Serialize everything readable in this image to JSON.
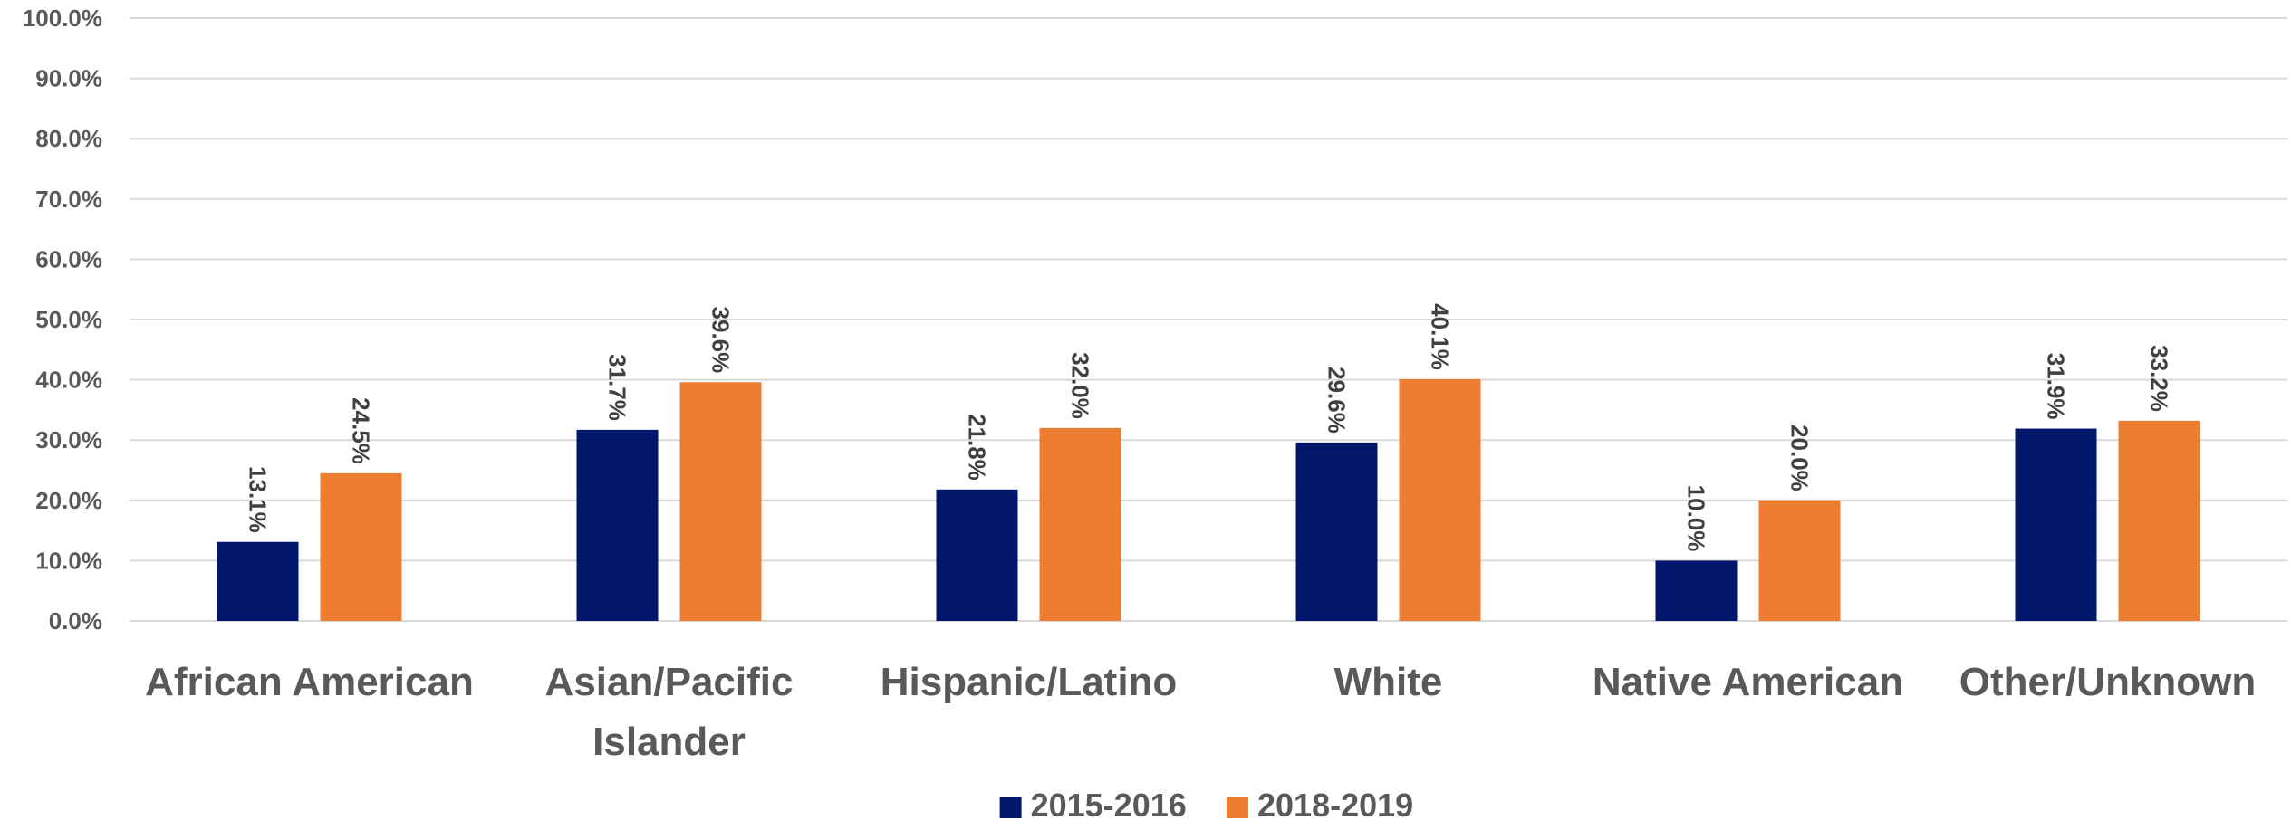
{
  "chart_data": {
    "type": "bar",
    "title": "",
    "xlabel": "",
    "ylabel": "",
    "categories": [
      [
        "African American"
      ],
      [
        "Asian/Pacific",
        "Islander"
      ],
      [
        "Hispanic/Latino"
      ],
      [
        "White"
      ],
      [
        "Native American"
      ],
      [
        "Other/Unknown"
      ]
    ],
    "series": [
      {
        "name": "2015-2016",
        "color": "#00176B",
        "values": [
          13.1,
          31.7,
          21.8,
          29.6,
          10.0,
          31.9
        ],
        "labels": [
          "13.1%",
          "31.7%",
          "21.8%",
          "29.6%",
          "10.0%",
          "31.9%"
        ]
      },
      {
        "name": "2018-2019",
        "color": "#ED7D31",
        "values": [
          24.5,
          39.6,
          32.0,
          40.1,
          20.0,
          33.2
        ],
        "labels": [
          "24.5%",
          "39.6%",
          "32.0%",
          "40.1%",
          "20.0%",
          "33.2%"
        ]
      }
    ],
    "ylim": [
      0,
      100
    ],
    "yticks": [
      0,
      10,
      20,
      30,
      40,
      50,
      60,
      70,
      80,
      90,
      100
    ],
    "ytick_labels": [
      "0.0%",
      "10.0%",
      "20.0%",
      "30.0%",
      "40.0%",
      "50.0%",
      "60.0%",
      "70.0%",
      "80.0%",
      "90.0%",
      "100.0%"
    ],
    "grid": true,
    "legend": "bottom-center",
    "data_label_orientation": "vertical"
  }
}
